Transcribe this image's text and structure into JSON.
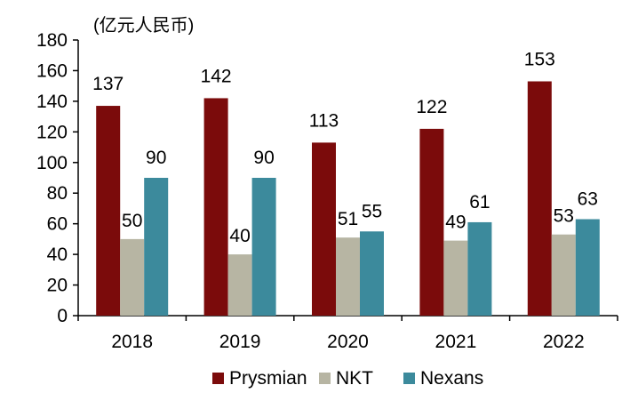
{
  "chart_data": {
    "type": "bar",
    "unit_label": "(亿元人民币)",
    "categories": [
      "2018",
      "2019",
      "2020",
      "2021",
      "2022"
    ],
    "series": [
      {
        "name": "Prysmian",
        "color": "#7b0b0b",
        "values": [
          137,
          142,
          113,
          122,
          153
        ]
      },
      {
        "name": "NKT",
        "color": "#b7b5a3",
        "values": [
          50,
          40,
          51,
          49,
          53
        ]
      },
      {
        "name": "Nexans",
        "color": "#3c8a9c",
        "values": [
          90,
          90,
          55,
          61,
          63
        ]
      }
    ],
    "ylim": [
      0,
      180
    ],
    "yticks": [
      0,
      20,
      40,
      60,
      80,
      100,
      120,
      140,
      160,
      180
    ],
    "legend_position": "bottom",
    "grid": false
  }
}
